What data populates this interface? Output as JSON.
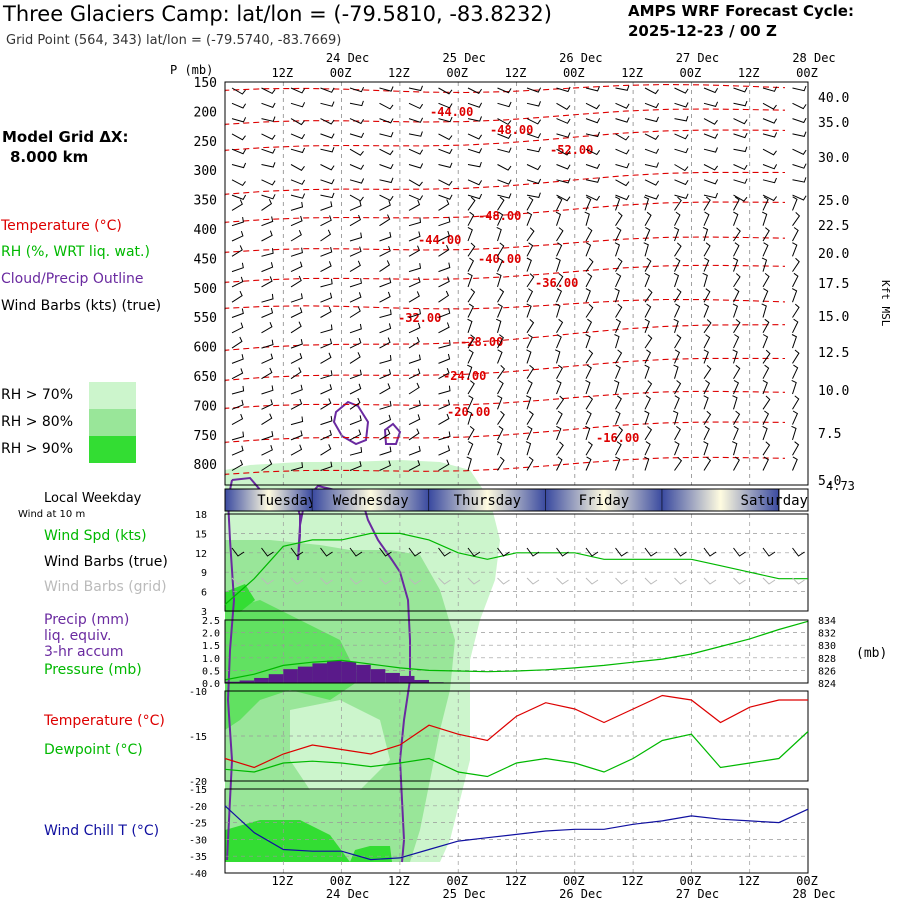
{
  "header": {
    "title": "Three Glaciers Camp:  lat/lon = (-79.5810, -83.8232)",
    "grid_point": "Grid Point (564, 343) lat/lon = (-79.5740, -83.7669)",
    "cycle_line1": "AMPS WRF Forecast Cycle:",
    "cycle_line2": "2025-12-23 / 00  Z"
  },
  "left_legend": {
    "model_grid_label": "Model Grid ΔX:",
    "model_grid_value": "8.000 km",
    "temperature": "Temperature (°C)",
    "rh": "RH (%, WRT liq. wat.)",
    "cloud": "Cloud/Precip Outline",
    "wind_barbs": "Wind Barbs (kts) (true)",
    "rh70": "RH > 70%",
    "rh80": "RH > 80%",
    "rh90": "RH > 90%",
    "local_weekday": "Local Weekday",
    "wind_10m": "Wind at 10 m",
    "wind_spd": "Wind Spd (kts)",
    "wind_barbs_true": "Wind Barbs (true)",
    "wind_barbs_grid": "Wind Barbs (grid)",
    "precip1": "Precip (mm)",
    "precip2": "liq. equiv.",
    "precip3": "3-hr accum",
    "pressure": "Pressure (mb)",
    "temp2": "Temperature (°C)",
    "dewpoint": "Dewpoint (°C)",
    "windchill": "Wind Chill T (°C)"
  },
  "colors": {
    "temperature": "#dd0000",
    "rh_green": "#00b800",
    "cloud": "#6a2aa0",
    "wind_chill": "#1010a0",
    "rh70": "#ccf5cc",
    "rh80": "#99e699",
    "rh90": "#33dd33",
    "precip": "#5a1a8a"
  },
  "chart_data": [
    {
      "type": "heatmap",
      "name": "time-height cross-section",
      "ylabel": "P (mb)",
      "right_label": "Kft MSL",
      "p_ticks": [
        "150",
        "200",
        "250",
        "300",
        "350",
        "400",
        "450",
        "500",
        "550",
        "600",
        "650",
        "700",
        "750",
        "800"
      ],
      "kft_ticks": [
        "40.0",
        "35.0",
        "30.0",
        "25.0",
        "22.5",
        "20.0",
        "17.5",
        "15.0",
        "12.5",
        "10.0",
        "7.5",
        "5.0",
        "4.73"
      ],
      "top_time_labels": [
        "12Z",
        "00Z",
        "12Z",
        "00Z",
        "12Z",
        "00Z",
        "12Z",
        "00Z",
        "12Z",
        "00Z"
      ],
      "top_date_labels": [
        "24 Dec",
        "25 Dec",
        "26 Dec",
        "27 Dec",
        "28 Dec"
      ],
      "isotherm_labels": [
        "-44.00",
        "-48.00",
        "-52.00",
        "-48.00",
        "-44.00",
        "-40.00",
        "-36.00",
        "-32.00",
        "-28.00",
        "-24.00",
        "-20.00",
        "-16.00"
      ]
    },
    {
      "type": "table",
      "name": "local weekday bar",
      "days": [
        "Tuesday",
        "Wednesday",
        "Thursday",
        "Friday",
        "Saturday"
      ]
    },
    {
      "type": "line",
      "name": "wind speed 10 m",
      "yticks": [
        "18",
        "15",
        "12",
        "9",
        "6",
        "3"
      ],
      "ylim": [
        3,
        18
      ],
      "x_hours": [
        0,
        6,
        12,
        18,
        24,
        30,
        36,
        42,
        48,
        54,
        60,
        66,
        72,
        78,
        84,
        90,
        96,
        102,
        108,
        114,
        120
      ],
      "series": [
        {
          "name": "Wind Spd (kts)",
          "values": [
            4,
            8,
            13,
            14,
            14,
            15,
            15,
            14,
            12,
            11,
            12,
            12,
            12,
            11,
            11,
            11,
            11,
            10,
            9,
            8,
            8
          ]
        }
      ]
    },
    {
      "type": "bar",
      "name": "precip and pressure",
      "yticks_left": [
        "2.5",
        "2.0",
        "1.5",
        "1.0",
        "0.5",
        "0.0"
      ],
      "yticks_right": [
        "834",
        "832",
        "830",
        "828",
        "826",
        "824"
      ],
      "right_unit": "(mb)",
      "precip_x_hours": [
        0,
        3,
        6,
        9,
        12,
        15,
        18,
        21,
        24,
        27,
        30,
        33,
        36,
        39,
        42,
        45,
        48
      ],
      "precip_values": [
        0.05,
        0.1,
        0.2,
        0.35,
        0.55,
        0.65,
        0.78,
        0.88,
        0.85,
        0.72,
        0.55,
        0.4,
        0.28,
        0.12,
        0.03,
        0,
        0
      ],
      "pressure_x_hours": [
        0,
        6,
        12,
        18,
        24,
        30,
        36,
        42,
        48,
        54,
        60,
        66,
        72,
        78,
        84,
        90,
        96,
        102,
        108,
        114,
        120
      ],
      "pressure_values": [
        824.5,
        825.4,
        826.8,
        827.3,
        827.6,
        827.0,
        826.4,
        826.0,
        825.9,
        825.8,
        825.9,
        826.1,
        826.4,
        826.8,
        827.3,
        827.8,
        828.6,
        829.8,
        831.0,
        832.5,
        833.8
      ]
    },
    {
      "type": "line",
      "name": "temperature and dewpoint",
      "yticks": [
        "-10",
        "-15",
        "-20"
      ],
      "ylim": [
        -20,
        -10
      ],
      "x_hours": [
        0,
        6,
        12,
        18,
        24,
        30,
        36,
        42,
        48,
        54,
        60,
        66,
        72,
        78,
        84,
        90,
        96,
        102,
        108,
        114,
        120
      ],
      "series": [
        {
          "name": "Temperature (°C)",
          "values": [
            -17.5,
            -18.5,
            -17.0,
            -16.0,
            -16.5,
            -17.0,
            -16.0,
            -13.8,
            -14.8,
            -15.5,
            -12.8,
            -11.3,
            -12.0,
            -13.5,
            -12.0,
            -10.5,
            -11.0,
            -13.5,
            -11.8,
            -11.0,
            -11.0
          ]
        },
        {
          "name": "Dewpoint (°C)",
          "values": [
            -18.7,
            -19.0,
            -18.0,
            -17.8,
            -18.0,
            -18.4,
            -18.0,
            -17.5,
            -19.0,
            -19.5,
            -18.0,
            -17.5,
            -18.0,
            -19.0,
            -17.5,
            -15.5,
            -14.8,
            -18.5,
            -18.0,
            -17.5,
            -14.5
          ]
        }
      ]
    },
    {
      "type": "line",
      "name": "wind chill",
      "yticks": [
        "-15",
        "-20",
        "-25",
        "-30",
        "-35",
        "-40"
      ],
      "ylim": [
        -40,
        -15
      ],
      "x_hours": [
        0,
        6,
        12,
        18,
        24,
        30,
        36,
        42,
        48,
        54,
        60,
        66,
        72,
        78,
        84,
        90,
        96,
        102,
        108,
        114,
        120
      ],
      "series": [
        {
          "name": "Wind Chill T (°C)",
          "values": [
            -20,
            -28,
            -33,
            -33.5,
            -33.5,
            -36,
            -35.5,
            -33,
            -30.5,
            -29.5,
            -28.5,
            -27.5,
            -27,
            -27,
            -25.5,
            -24.5,
            -23,
            -24,
            -24.5,
            -25,
            -21
          ]
        }
      ],
      "bottom_time_labels": [
        "12Z",
        "00Z",
        "12Z",
        "00Z",
        "12Z",
        "00Z",
        "12Z",
        "00Z",
        "12Z",
        "00Z"
      ],
      "bottom_date_labels": [
        "24 Dec",
        "25 Dec",
        "26 Dec",
        "27 Dec",
        "28 Dec"
      ]
    }
  ]
}
